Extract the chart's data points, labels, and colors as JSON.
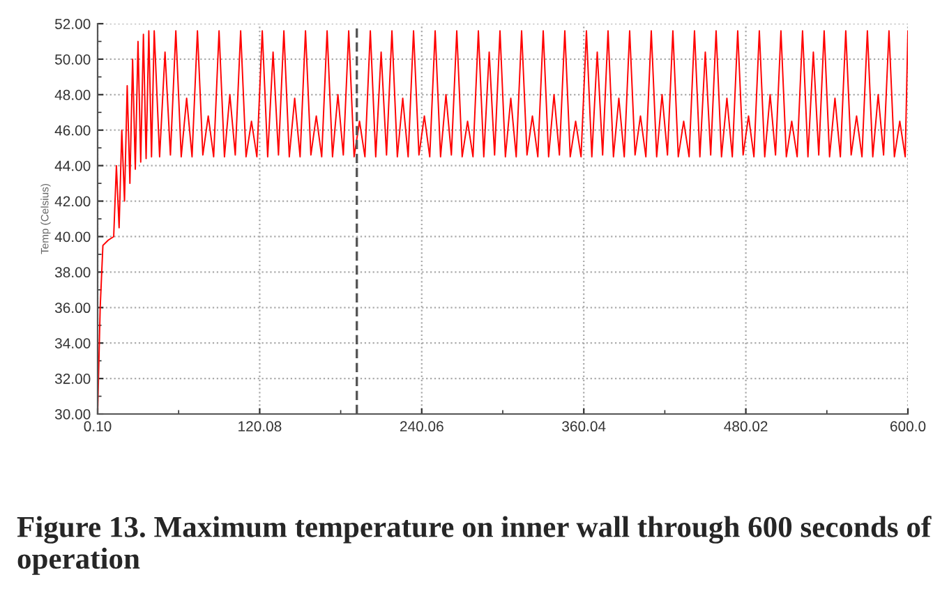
{
  "chart_data": {
    "type": "line",
    "ylabel": "Temp (Celsius)",
    "annotations": [
      "Figure 13. Maximum temperature on inner wall through 600 seconds of operation"
    ],
    "series": [
      {
        "color": "#ff0000",
        "x": [
          0.1,
          2,
          4,
          8,
          12,
          14,
          16,
          18,
          20,
          22,
          24,
          26,
          28,
          30,
          32,
          34,
          36,
          38,
          40,
          42,
          46,
          50,
          54,
          58,
          62,
          66,
          70,
          74,
          78,
          82,
          86,
          90,
          94,
          98,
          102,
          106,
          110,
          114,
          118,
          122,
          126,
          130,
          134,
          138,
          142,
          146,
          150,
          154,
          158,
          162,
          166,
          170,
          174,
          178,
          182,
          186,
          190,
          194,
          198,
          202,
          206,
          210,
          214,
          218,
          222,
          226,
          230,
          234,
          238,
          242,
          246,
          250,
          254,
          258,
          262,
          266,
          270,
          274,
          278,
          282,
          286,
          290,
          294,
          298,
          302,
          306,
          310,
          314,
          318,
          322,
          326,
          330,
          334,
          338,
          342,
          346,
          350,
          354,
          358,
          362,
          366,
          370,
          374,
          378,
          382,
          386,
          390,
          394,
          398,
          402,
          406,
          410,
          414,
          418,
          422,
          426,
          430,
          434,
          438,
          442,
          446,
          450,
          454,
          458,
          462,
          466,
          470,
          474,
          478,
          482,
          486,
          490,
          494,
          498,
          502,
          506,
          510,
          514,
          518,
          522,
          526,
          530,
          534,
          538,
          542,
          546,
          550,
          554,
          558,
          562,
          566,
          570,
          574,
          578,
          582,
          586,
          590,
          594,
          598,
          600
        ],
        "values": [
          30.0,
          36.0,
          39.5,
          39.8,
          40.0,
          44.0,
          40.5,
          46.0,
          42.0,
          48.5,
          43.0,
          50.0,
          43.8,
          51.0,
          44.2,
          51.4,
          44.4,
          51.6,
          44.5,
          51.6,
          44.5,
          50.4,
          44.6,
          51.6,
          44.5,
          47.8,
          44.5,
          51.6,
          44.6,
          46.8,
          44.5,
          51.6,
          44.5,
          48.0,
          44.6,
          51.6,
          44.5,
          46.5,
          44.5,
          51.6,
          44.5,
          50.4,
          44.6,
          51.6,
          44.5,
          47.8,
          44.5,
          51.6,
          44.6,
          46.8,
          44.5,
          51.6,
          44.5,
          48.0,
          44.6,
          51.6,
          44.5,
          46.5,
          44.5,
          51.6,
          44.5,
          50.4,
          44.6,
          51.6,
          44.5,
          47.8,
          44.5,
          51.6,
          44.6,
          46.8,
          44.5,
          51.6,
          44.5,
          48.0,
          44.6,
          51.6,
          44.5,
          46.5,
          44.5,
          51.6,
          44.5,
          50.4,
          44.6,
          51.6,
          44.5,
          47.8,
          44.5,
          51.6,
          44.6,
          46.8,
          44.5,
          51.6,
          44.5,
          48.0,
          44.6,
          51.6,
          44.5,
          46.5,
          44.5,
          51.6,
          44.5,
          50.4,
          44.6,
          51.6,
          44.5,
          47.8,
          44.5,
          51.6,
          44.6,
          46.8,
          44.5,
          51.6,
          44.5,
          48.0,
          44.6,
          51.6,
          44.5,
          46.5,
          44.5,
          51.6,
          44.5,
          50.4,
          44.6,
          51.6,
          44.5,
          47.8,
          44.5,
          51.6,
          44.6,
          46.8,
          44.5,
          51.6,
          44.5,
          48.0,
          44.6,
          51.6,
          44.5,
          46.5,
          44.5,
          51.6,
          44.5,
          50.4,
          44.6,
          51.6,
          44.5,
          47.8,
          44.5,
          51.6,
          44.6,
          46.8,
          44.5,
          51.6,
          44.5,
          48.0,
          44.6,
          51.6,
          44.5,
          46.5,
          44.5,
          51.6
        ]
      }
    ],
    "xlim": [
      0.1,
      600.0
    ],
    "xticks": [
      {
        "value": 0.1,
        "label": "0.10"
      },
      {
        "value": 60.09,
        "label": null
      },
      {
        "value": 120.08,
        "label": "120.08"
      },
      {
        "value": 180.07,
        "label": null
      },
      {
        "value": 240.06,
        "label": "240.06"
      },
      {
        "value": 300.05,
        "label": null
      },
      {
        "value": 360.04,
        "label": "360.04"
      },
      {
        "value": 420.03,
        "label": null
      },
      {
        "value": 480.02,
        "label": "480.02"
      },
      {
        "value": 540.01,
        "label": null
      },
      {
        "value": 600.0,
        "label": "600.0"
      }
    ],
    "ylim": [
      30.0,
      52.0
    ],
    "yticks": [
      {
        "value": 30,
        "label": "30.00"
      },
      {
        "value": 31,
        "label": null
      },
      {
        "value": 32,
        "label": "32.00"
      },
      {
        "value": 33,
        "label": null
      },
      {
        "value": 34,
        "label": "34.00"
      },
      {
        "value": 35,
        "label": null
      },
      {
        "value": 36,
        "label": "36.00"
      },
      {
        "value": 37,
        "label": null
      },
      {
        "value": 38,
        "label": "38.00"
      },
      {
        "value": 39,
        "label": null
      },
      {
        "value": 40,
        "label": "40.00"
      },
      {
        "value": 41,
        "label": null
      },
      {
        "value": 42,
        "label": "42.00"
      },
      {
        "value": 43,
        "label": null
      },
      {
        "value": 44,
        "label": "44.00"
      },
      {
        "value": 45,
        "label": null
      },
      {
        "value": 46,
        "label": "46.00"
      },
      {
        "value": 47,
        "label": null
      },
      {
        "value": 48,
        "label": "48.00"
      },
      {
        "value": 49,
        "label": null
      },
      {
        "value": 50,
        "label": "50.00"
      },
      {
        "value": 51,
        "label": null
      },
      {
        "value": 52,
        "label": "52.00"
      }
    ],
    "ref_lines": [
      {
        "axis": "x",
        "value": 192,
        "label": null,
        "color": "#555555",
        "line_style": "dashed"
      }
    ],
    "grid": true,
    "line_style": "solid",
    "marker": "none"
  }
}
